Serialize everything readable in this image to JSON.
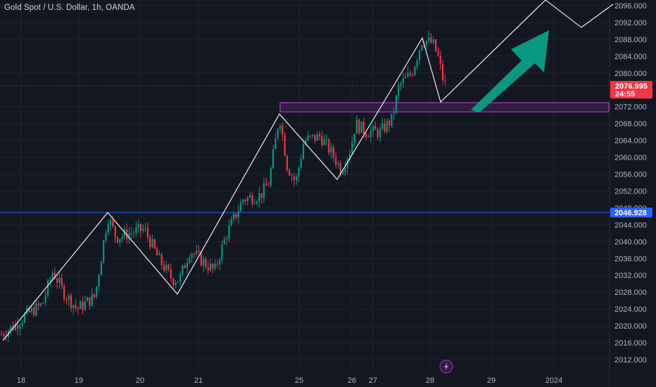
{
  "title": "Gold Spot / U.S. Dollar, 1h, OANDA",
  "price_axis": {
    "ticks": [
      "2096.000",
      "2092.000",
      "2088.000",
      "2084.000",
      "2080.000",
      "2072.000",
      "2068.000",
      "2064.000",
      "2060.000",
      "2056.000",
      "2052.000",
      "2048.000",
      "2044.000",
      "2040.000",
      "2036.000",
      "2032.000",
      "2028.000",
      "2024.000",
      "2020.000",
      "2016.000",
      "2012.000"
    ]
  },
  "current_price": {
    "value": "2076.995",
    "countdown": "24:55",
    "color": "#f23645"
  },
  "hline_label": {
    "value": "2046.928",
    "color": "#2962ff"
  },
  "time_axis": {
    "labels": [
      "18",
      "19",
      "20",
      "21",
      "25",
      "26",
      "27",
      "28",
      "29",
      "2024"
    ]
  },
  "colors": {
    "up": "#089981",
    "down": "#f23645",
    "zone": "#9c27b0",
    "arrow": "#089981",
    "zigzag": "#ffffff",
    "background": "#131722"
  },
  "chart_data": {
    "type": "candlestick",
    "title": "Gold Spot / U.S. Dollar, 1h, OANDA",
    "ylim": [
      2010,
      2098
    ],
    "x_categories": [
      "18",
      "19",
      "20",
      "21",
      "25",
      "26",
      "27",
      "28",
      "29",
      "2024"
    ],
    "horizontal_line": 2046.928,
    "last_price": 2076.995,
    "zone": {
      "from": 2071.2,
      "to": 2073.5
    },
    "zigzag": [
      {
        "x": "Dec 18",
        "y": 2017
      },
      {
        "x": "Dec 19",
        "y": 2047
      },
      {
        "x": "Dec 20",
        "y": 2028
      },
      {
        "x": "Dec 21",
        "y": 2072
      },
      {
        "x": "Dec 26",
        "y": 2055
      },
      {
        "x": "Dec 27",
        "y": 2089
      },
      {
        "x": "Dec 28",
        "y": 2073.5
      },
      {
        "x": "projection",
        "y": 2098
      },
      {
        "x": "projection",
        "y": 2092
      },
      {
        "x": "projection",
        "y": 2096
      }
    ]
  }
}
